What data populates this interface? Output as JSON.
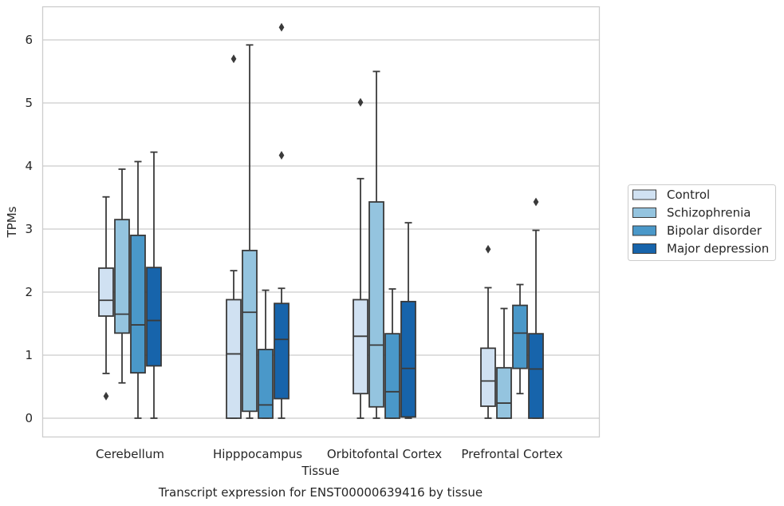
{
  "chart_data": {
    "type": "boxplot",
    "caption": "Transcript expression for ENST00000639416 by tissue",
    "xlabel": "Tissue",
    "ylabel": "TPMs",
    "ylim": [
      -0.3,
      6.5
    ],
    "y_ticks": [
      "0",
      "1",
      "2",
      "3",
      "4",
      "5",
      "6"
    ],
    "grid": "horizontal",
    "legend_position": "right",
    "categories": [
      "Cerebellum",
      "Hipppocampus",
      "Orbitofontal Cortex",
      "Prefrontal Cortex"
    ],
    "series": [
      {
        "name": "Control",
        "color": "#d0e1f2",
        "boxes": [
          {
            "whislo": 0.71,
            "q1": 1.62,
            "med": 1.87,
            "q3": 2.38,
            "whishi": 3.51,
            "fliers": [
              0.35
            ]
          },
          {
            "whislo": 0.0,
            "q1": 0.0,
            "med": 1.02,
            "q3": 1.88,
            "whishi": 2.34,
            "fliers": [
              5.7
            ]
          },
          {
            "whislo": 0.0,
            "q1": 0.39,
            "med": 1.3,
            "q3": 1.88,
            "whishi": 3.8,
            "fliers": [
              5.01
            ]
          },
          {
            "whislo": 0.0,
            "q1": 0.19,
            "med": 0.59,
            "q3": 1.11,
            "whishi": 2.07,
            "fliers": [
              2.68
            ]
          }
        ]
      },
      {
        "name": "Schizophrenia",
        "color": "#94c4df",
        "boxes": [
          {
            "whislo": 0.56,
            "q1": 1.35,
            "med": 1.65,
            "q3": 3.15,
            "whishi": 3.95,
            "fliers": []
          },
          {
            "whislo": 0.0,
            "q1": 0.11,
            "med": 1.68,
            "q3": 2.66,
            "whishi": 5.92,
            "fliers": []
          },
          {
            "whislo": 0.0,
            "q1": 0.18,
            "med": 1.16,
            "q3": 3.43,
            "whishi": 5.5,
            "fliers": []
          },
          {
            "whislo": 0.0,
            "q1": 0.0,
            "med": 0.24,
            "q3": 0.8,
            "whishi": 1.74,
            "fliers": []
          }
        ]
      },
      {
        "name": "Bipolar disorder",
        "color": "#4a98c9",
        "boxes": [
          {
            "whislo": 0.0,
            "q1": 0.72,
            "med": 1.48,
            "q3": 2.9,
            "whishi": 4.07,
            "fliers": []
          },
          {
            "whislo": 0.0,
            "q1": 0.0,
            "med": 0.21,
            "q3": 1.09,
            "whishi": 2.03,
            "fliers": []
          },
          {
            "whislo": 0.0,
            "q1": 0.0,
            "med": 0.42,
            "q3": 1.34,
            "whishi": 2.05,
            "fliers": []
          },
          {
            "whislo": 0.39,
            "q1": 0.79,
            "med": 1.35,
            "q3": 1.79,
            "whishi": 2.12,
            "fliers": []
          }
        ]
      },
      {
        "name": "Major depression",
        "color": "#1764ab",
        "boxes": [
          {
            "whislo": 0.0,
            "q1": 0.83,
            "med": 1.55,
            "q3": 2.39,
            "whishi": 4.22,
            "fliers": []
          },
          {
            "whislo": 0.0,
            "q1": 0.31,
            "med": 1.25,
            "q3": 1.82,
            "whishi": 2.06,
            "fliers": [
              6.2,
              4.17
            ]
          },
          {
            "whislo": 0.0,
            "q1": 0.02,
            "med": 0.79,
            "q3": 1.85,
            "whishi": 3.1,
            "fliers": []
          },
          {
            "whislo": 0.0,
            "q1": 0.0,
            "med": 0.78,
            "q3": 1.34,
            "whishi": 2.98,
            "fliers": [
              3.43
            ]
          }
        ]
      }
    ]
  }
}
